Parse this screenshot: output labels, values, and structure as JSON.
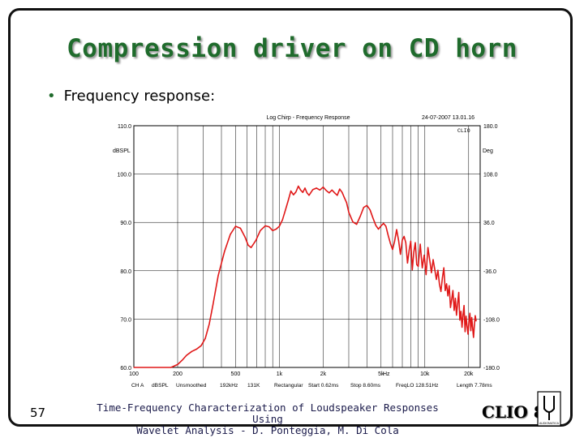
{
  "slide": {
    "title": "Compression driver on CD horn",
    "bullet": "Frequency response:",
    "page_number": "57",
    "citation_line1": "Time-Frequency Characterization of Loudspeaker Responses Using",
    "citation_line2": "Wavelet Analysis - D. Ponteggia, M. Di Cola",
    "logo_text": "CLIO 8",
    "logo_small": "AUDIOMATICA",
    "title_color": "#1f6b2c"
  },
  "chart_data": {
    "type": "line",
    "header_left": "Log Chirp - Frequency Response",
    "header_right": "24-07-2007 13.01.16",
    "clio_mark": "CLIO",
    "ylabel": "dBSPL",
    "ylabel_right": "Deg",
    "x_scale": "log",
    "xlim": [
      100,
      24000
    ],
    "ylim": [
      60,
      110
    ],
    "y2lim": [
      -180,
      180
    ],
    "grid": true,
    "y_ticks": [
      "110.0",
      "100.0",
      "90.0",
      "80.0",
      "70.0",
      "60.0"
    ],
    "y2_ticks": [
      "180.0",
      "108.0",
      "36.0",
      "-36.0",
      "-108.0",
      "-180.0"
    ],
    "x_ticks": [
      {
        "value": 100,
        "label": "100"
      },
      {
        "value": 200,
        "label": "200"
      },
      {
        "value": 500,
        "label": "500"
      },
      {
        "value": 1000,
        "label": "1k"
      },
      {
        "value": 2000,
        "label": "2k"
      },
      {
        "value": 5000,
        "label": "5k"
      },
      {
        "value": 10000,
        "label": "10k"
      },
      {
        "value": 20000,
        "label": "20k"
      }
    ],
    "x_unit": "Hz",
    "footer_items": [
      "CH A",
      "dBSPL",
      "Unsmoothed",
      "192kHz",
      "131K",
      "Rectangular",
      "Start 0.62ms",
      "Stop 8.60ms",
      "FreqLO 128.51Hz",
      "Length 7.78ms"
    ],
    "series": [
      {
        "color": "#e01818",
        "x": [
          100,
          180,
          200,
          215,
          230,
          250,
          270,
          290,
          310,
          330,
          350,
          380,
          420,
          460,
          500,
          540,
          580,
          610,
          640,
          690,
          740,
          800,
          850,
          900,
          950,
          1000,
          1050,
          1100,
          1150,
          1200,
          1250,
          1300,
          1350,
          1400,
          1450,
          1500,
          1550,
          1600,
          1700,
          1800,
          1900,
          2000,
          2100,
          2200,
          2300,
          2400,
          2500,
          2600,
          2700,
          2800,
          2900,
          3000,
          3200,
          3400,
          3600,
          3800,
          4000,
          4200,
          4400,
          4600,
          4800,
          5000,
          5200,
          5400,
          5600,
          5800,
          6000,
          6200,
          6400,
          6600,
          6800,
          7000,
          7200,
          7400,
          7600,
          7800,
          8000,
          8200,
          8400,
          8600,
          8800,
          9000,
          9300,
          9600,
          9900,
          10200,
          10500,
          10800,
          11100,
          11400,
          11700,
          12000,
          12300,
          12600,
          12900,
          13200,
          13500,
          13800,
          14100,
          14400,
          14700,
          15000,
          15300,
          15600,
          15900,
          16200,
          16500,
          16800,
          17100,
          17400,
          17700,
          18000,
          18300,
          18600,
          18900,
          19200,
          19500,
          19800,
          20100,
          20400,
          20700,
          21000,
          21300,
          21600,
          21900,
          22200,
          22500
        ],
        "y": [
          60,
          60,
          60.6,
          61.5,
          62.5,
          63.3,
          63.8,
          64.5,
          66,
          69,
          73,
          79,
          84,
          87.5,
          89.2,
          88.8,
          87,
          85.3,
          84.8,
          86.3,
          88.3,
          89.3,
          89.1,
          88.3,
          88.6,
          89.2,
          90.5,
          92.5,
          94.5,
          96.5,
          95.7,
          96.3,
          97.5,
          96.7,
          96.2,
          97.1,
          96.1,
          95.6,
          96.8,
          97.1,
          96.7,
          97.3,
          96.6,
          96.1,
          96.7,
          96.1,
          95.6,
          96.9,
          96.2,
          95.1,
          94.1,
          92.1,
          90.1,
          89.6,
          91.3,
          93.1,
          93.5,
          92.6,
          90.9,
          89.4,
          88.6,
          89.3,
          89.8,
          89.2,
          87.3,
          85.6,
          84.4,
          86.1,
          88.5,
          86.3,
          83.4,
          86.4,
          87.1,
          85.8,
          81.6,
          84.2,
          86.1,
          80.2,
          83.9,
          85.8,
          81.3,
          80.9,
          85.5,
          80.6,
          83.2,
          79.2,
          84.8,
          82.2,
          79.6,
          82.3,
          80.3,
          78.2,
          80.1,
          77.2,
          75.7,
          78.5,
          80.6,
          75.9,
          77.3,
          74.8,
          76.9,
          72.4,
          74.1,
          75.9,
          71.8,
          74.3,
          70.8,
          73.2,
          75.5,
          69.8,
          71.6,
          68.3,
          70.9,
          72.8,
          67.4,
          70.6,
          68.6,
          66.9,
          69.7,
          71.2,
          67.6,
          70.3,
          68.2,
          66.2,
          68.8,
          70.7,
          69.6
        ]
      }
    ]
  }
}
